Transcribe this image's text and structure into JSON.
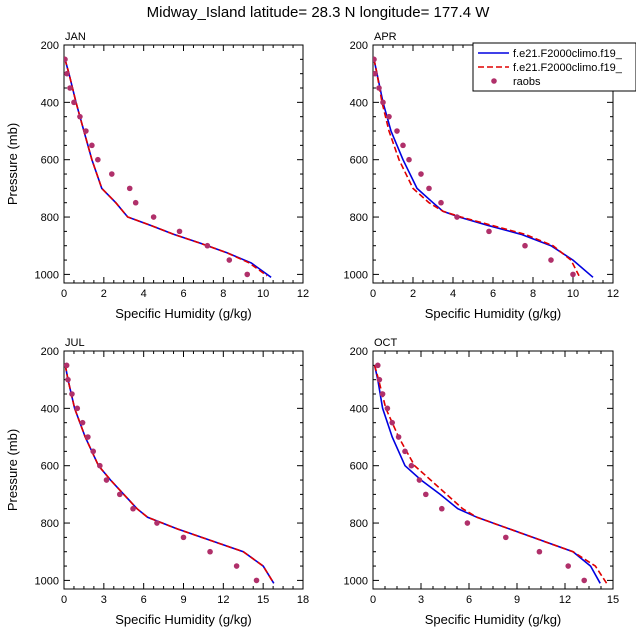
{
  "figure": {
    "title": "Midway_Island  latitude= 28.3 N longitude= 177.4 W"
  },
  "colors": {
    "model1": "#0000e0",
    "model2": "#e00000",
    "raobs": "#b0306a"
  },
  "legend": {
    "placement": "top-right of APR panel",
    "entries": [
      "f.e21.F2000climo.f19_",
      "f.e21.F2000climo.f19_",
      "raobs"
    ]
  },
  "chart_data": [
    {
      "type": "line",
      "panel": "JAN",
      "xlabel": "Specific Humidity (g/kg)",
      "ylabel": "Pressure (mb)",
      "xlim": [
        0,
        12
      ],
      "ylim": [
        200,
        1030
      ],
      "y_inverted": true,
      "xticks": [
        0,
        2,
        4,
        6,
        8,
        10,
        12
      ],
      "yticks": [
        200,
        400,
        600,
        800,
        1000
      ],
      "series": [
        {
          "name": "f.e21.F2000climo.f19_",
          "style": "solid",
          "x": [
            0.05,
            0.25,
            0.6,
            1.0,
            1.4,
            1.9,
            2.6,
            3.2,
            4.4,
            5.5,
            6.8,
            8.2,
            9.4,
            10.4
          ],
          "y": [
            250,
            300,
            400,
            500,
            600,
            700,
            750,
            800,
            830,
            860,
            890,
            925,
            960,
            1010
          ]
        },
        {
          "name": "f.e21.F2000climo.f19_",
          "style": "dashed",
          "x": [
            0.05,
            0.25,
            0.6,
            1.0,
            1.4,
            1.9,
            2.6,
            3.2,
            4.4,
            5.5,
            6.8,
            8.2,
            9.3,
            10.2
          ],
          "y": [
            250,
            300,
            400,
            500,
            600,
            700,
            750,
            800,
            830,
            860,
            890,
            925,
            960,
            1005
          ]
        },
        {
          "name": "raobs",
          "style": "dots",
          "x": [
            0.05,
            0.15,
            0.3,
            0.5,
            0.8,
            1.1,
            1.4,
            1.7,
            2.4,
            3.3,
            3.6,
            4.5,
            5.8,
            7.2,
            8.3,
            9.2
          ],
          "y": [
            250,
            300,
            350,
            400,
            450,
            500,
            550,
            600,
            650,
            700,
            750,
            800,
            850,
            900,
            950,
            1000
          ]
        }
      ]
    },
    {
      "type": "line",
      "panel": "APR",
      "xlabel": "Specific Humidity (g/kg)",
      "ylabel": "",
      "xlim": [
        0,
        12
      ],
      "ylim": [
        200,
        1030
      ],
      "y_inverted": true,
      "xticks": [
        0,
        2,
        4,
        6,
        8,
        10,
        12
      ],
      "yticks": [
        200,
        400,
        600,
        800,
        1000
      ],
      "series": [
        {
          "name": "f.e21.F2000climo.f19_",
          "style": "solid",
          "x": [
            0.05,
            0.2,
            0.5,
            0.9,
            1.5,
            2.2,
            3.0,
            3.5,
            4.3,
            5.8,
            7.4,
            8.9,
            10.0,
            11.0
          ],
          "y": [
            250,
            300,
            400,
            500,
            600,
            700,
            750,
            780,
            800,
            830,
            860,
            900,
            950,
            1010
          ]
        },
        {
          "name": "f.e21.F2000climo.f19_",
          "style": "dashed",
          "x": [
            0.05,
            0.2,
            0.45,
            0.8,
            1.3,
            2.0,
            2.8,
            3.5,
            4.4,
            6.0,
            7.6,
            9.0,
            9.9,
            10.3
          ],
          "y": [
            250,
            300,
            400,
            500,
            600,
            700,
            750,
            780,
            800,
            830,
            860,
            900,
            950,
            1005
          ]
        },
        {
          "name": "raobs",
          "style": "dots",
          "x": [
            0.05,
            0.1,
            0.3,
            0.5,
            0.8,
            1.2,
            1.5,
            1.8,
            2.4,
            2.8,
            3.4,
            4.2,
            5.8,
            7.6,
            8.9,
            10.0
          ],
          "y": [
            250,
            300,
            350,
            400,
            450,
            500,
            550,
            600,
            650,
            700,
            750,
            800,
            850,
            900,
            950,
            1000
          ]
        }
      ]
    },
    {
      "type": "line",
      "panel": "JUL",
      "xlabel": "Specific Humidity (g/kg)",
      "ylabel": "Pressure (mb)",
      "xlim": [
        0,
        18
      ],
      "ylim": [
        200,
        1030
      ],
      "y_inverted": true,
      "xticks": [
        0,
        3,
        6,
        9,
        12,
        15,
        18
      ],
      "yticks": [
        200,
        400,
        600,
        800,
        1000
      ],
      "series": [
        {
          "name": "f.e21.F2000climo.f19_",
          "style": "solid",
          "x": [
            0.1,
            0.3,
            0.8,
            1.6,
            2.6,
            3.5,
            4.5,
            5.5,
            6.3,
            8.5,
            11.0,
            13.5,
            15.0,
            15.8
          ],
          "y": [
            250,
            300,
            400,
            500,
            600,
            650,
            700,
            750,
            780,
            820,
            860,
            900,
            950,
            1010
          ]
        },
        {
          "name": "f.e21.F2000climo.f19_",
          "style": "dashed",
          "x": [
            0.1,
            0.3,
            0.8,
            1.6,
            2.6,
            3.5,
            4.5,
            5.5,
            6.3,
            8.5,
            11.0,
            13.5,
            15.0,
            15.8
          ],
          "y": [
            250,
            300,
            400,
            500,
            600,
            650,
            700,
            750,
            780,
            820,
            860,
            900,
            950,
            1010
          ]
        },
        {
          "name": "raobs",
          "style": "dots",
          "x": [
            0.2,
            0.3,
            0.6,
            1.0,
            1.4,
            1.8,
            2.2,
            2.7,
            3.2,
            4.2,
            5.2,
            7.0,
            9.0,
            11.0,
            13.0,
            14.5
          ],
          "y": [
            250,
            300,
            350,
            400,
            450,
            500,
            550,
            600,
            650,
            700,
            750,
            800,
            850,
            900,
            950,
            1000
          ]
        }
      ]
    },
    {
      "type": "line",
      "panel": "OCT",
      "xlabel": "Specific Humidity (g/kg)",
      "ylabel": "",
      "xlim": [
        0,
        15
      ],
      "ylim": [
        200,
        1030
      ],
      "y_inverted": true,
      "xticks": [
        0,
        3,
        6,
        9,
        12,
        15
      ],
      "yticks": [
        200,
        400,
        600,
        800,
        1000
      ],
      "series": [
        {
          "name": "f.e21.F2000climo.f19_",
          "style": "solid",
          "x": [
            0.1,
            0.3,
            0.6,
            1.2,
            2.0,
            3.0,
            4.2,
            5.3,
            6.5,
            8.5,
            10.5,
            12.5,
            13.6,
            14.2
          ],
          "y": [
            250,
            300,
            400,
            500,
            600,
            650,
            700,
            750,
            780,
            820,
            860,
            900,
            950,
            1010
          ]
        },
        {
          "name": "f.e21.F2000climo.f19_",
          "style": "dashed",
          "x": [
            0.1,
            0.35,
            0.8,
            1.6,
            2.6,
            3.6,
            4.6,
            5.6,
            6.5,
            8.5,
            10.5,
            12.5,
            13.9,
            14.6
          ],
          "y": [
            250,
            300,
            400,
            500,
            600,
            650,
            700,
            750,
            780,
            820,
            860,
            900,
            950,
            1010
          ]
        },
        {
          "name": "raobs",
          "style": "dots",
          "x": [
            0.3,
            0.4,
            0.6,
            0.9,
            1.2,
            1.6,
            2.0,
            2.4,
            2.9,
            3.3,
            4.3,
            5.9,
            8.3,
            10.4,
            12.2,
            13.2
          ],
          "y": [
            250,
            300,
            350,
            400,
            450,
            500,
            550,
            600,
            650,
            700,
            750,
            800,
            850,
            900,
            950,
            1000
          ]
        }
      ]
    }
  ]
}
